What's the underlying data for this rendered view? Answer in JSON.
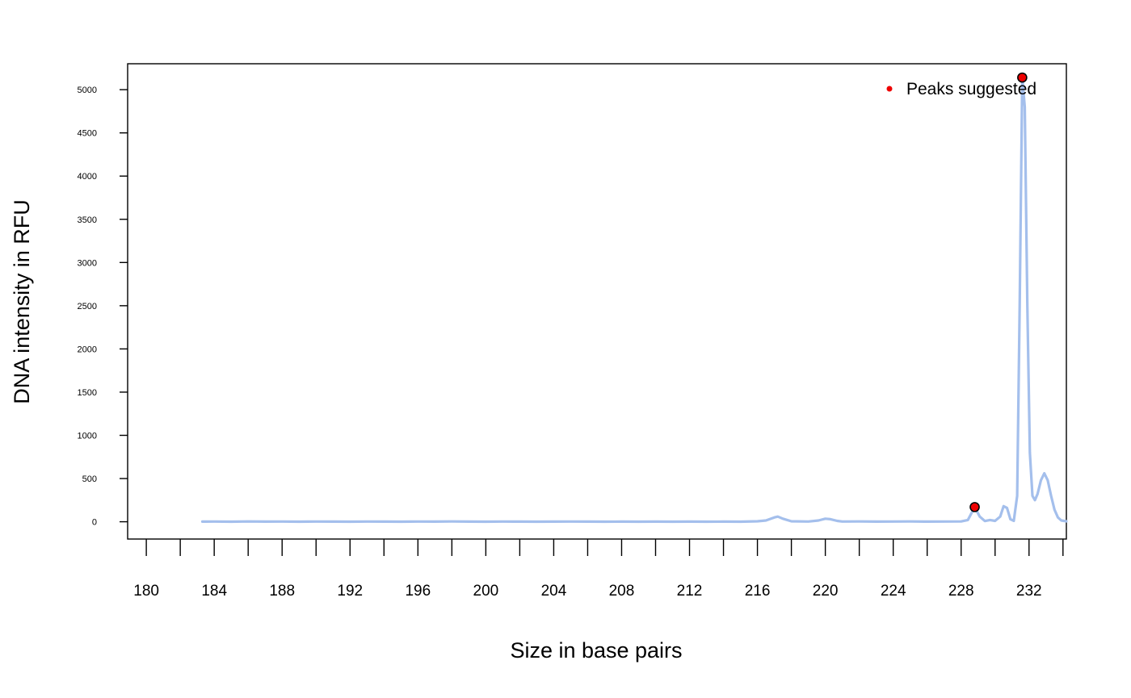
{
  "chart_data": {
    "type": "line",
    "title": "",
    "xlabel": "Size in base pairs",
    "ylabel": "DNA intensity in RFU",
    "xlim": [
      178.9,
      234.2
    ],
    "ylim": [
      -200,
      5300
    ],
    "x_ticks": [
      180,
      182,
      184,
      186,
      188,
      190,
      192,
      194,
      196,
      198,
      200,
      202,
      204,
      206,
      208,
      210,
      212,
      214,
      216,
      218,
      220,
      222,
      224,
      226,
      228,
      230,
      232,
      234
    ],
    "x_tick_labels": [
      "180",
      "184",
      "188",
      "192",
      "196",
      "200",
      "204",
      "208",
      "212",
      "216",
      "220",
      "224",
      "228",
      "232"
    ],
    "x_tick_label_values": [
      180,
      184,
      188,
      192,
      196,
      200,
      204,
      208,
      212,
      216,
      220,
      224,
      228,
      232
    ],
    "y_ticks": [
      0,
      500,
      1000,
      1500,
      2000,
      2500,
      3000,
      3500,
      4000,
      4500,
      5000
    ],
    "y_tick_labels": [
      "0",
      "500",
      "1000",
      "1500",
      "2000",
      "2500",
      "3000",
      "3500",
      "4000",
      "4500",
      "5000"
    ],
    "grid": false,
    "legend_position": "top-right",
    "series": [
      {
        "color": "#a4bfec",
        "x": [
          183.3,
          184,
          185,
          186,
          187,
          188,
          189,
          190,
          191,
          192,
          193,
          194,
          195,
          196,
          197,
          198,
          199,
          200,
          201,
          202,
          203,
          204,
          205,
          206,
          207,
          208,
          209,
          210,
          211,
          212,
          213,
          214,
          215,
          216,
          216.5,
          217,
          217.2,
          217.5,
          218,
          219,
          219.6,
          220,
          220.3,
          220.7,
          221,
          222,
          223,
          224,
          225,
          226,
          227,
          228,
          228.4,
          228.8,
          229.1,
          229.4,
          229.7,
          230,
          230.3,
          230.5,
          230.7,
          230.9,
          231.1,
          231.3,
          231.45,
          231.6,
          231.75,
          231.9,
          232.05,
          232.2,
          232.35,
          232.5,
          232.7,
          232.9,
          233.1,
          233.3,
          233.5,
          233.7,
          233.9,
          234.2
        ],
        "y": [
          2,
          3,
          1,
          4,
          2,
          3,
          1,
          3,
          2,
          1,
          3,
          2,
          1,
          3,
          2,
          4,
          2,
          1,
          3,
          2,
          1,
          2,
          3,
          2,
          1,
          2,
          1,
          2,
          1,
          2,
          1,
          2,
          1,
          5,
          15,
          50,
          60,
          35,
          5,
          3,
          15,
          35,
          30,
          10,
          3,
          4,
          2,
          3,
          4,
          2,
          3,
          4,
          20,
          170,
          60,
          8,
          20,
          10,
          60,
          180,
          160,
          30,
          10,
          300,
          2500,
          5140,
          4800,
          2500,
          800,
          300,
          250,
          320,
          480,
          560,
          480,
          300,
          140,
          50,
          15,
          5
        ]
      }
    ],
    "markers": [
      {
        "x": 228.8,
        "y": 170
      },
      {
        "x": 231.6,
        "y": 5140
      }
    ],
    "marker_color": "#ee0000",
    "legend": [
      {
        "label": "Peaks suggested",
        "color": "#ee0000"
      }
    ]
  }
}
